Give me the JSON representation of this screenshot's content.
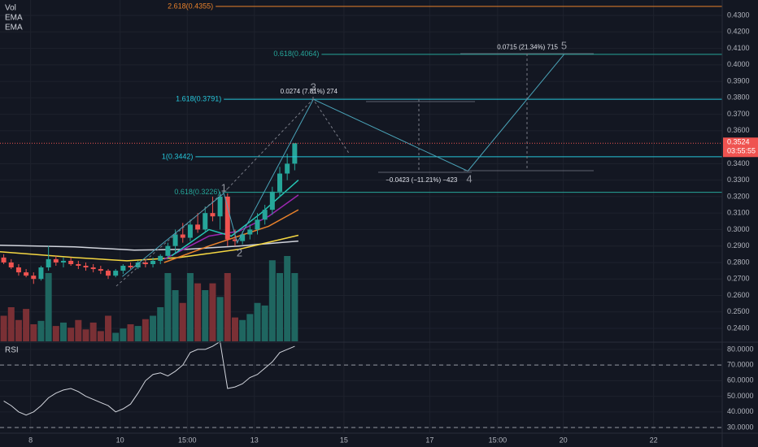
{
  "chart_data": {
    "type": "candlestick",
    "legend": [
      "Vol",
      "EMA",
      "EMA"
    ],
    "pane2_title": "RSI",
    "xlim": [
      0,
      96.8
    ],
    "xticks": [
      {
        "value": 4.1,
        "label": "8"
      },
      {
        "value": 16.1,
        "label": "10"
      },
      {
        "value": 25.1,
        "label": "15:00"
      },
      {
        "value": 34.1,
        "label": "13"
      },
      {
        "value": 46.1,
        "label": "15"
      },
      {
        "value": 57.6,
        "label": "17"
      },
      {
        "value": 66.7,
        "label": "15:00"
      },
      {
        "value": 75.5,
        "label": "20"
      },
      {
        "value": 87.6,
        "label": "22"
      }
    ],
    "ylim": [
      0.2321,
      0.4394
    ],
    "yticks": [
      {
        "value": 0.24,
        "label": "0.2400"
      },
      {
        "value": 0.25,
        "label": "0.2500"
      },
      {
        "value": 0.26,
        "label": "0.2600"
      },
      {
        "value": 0.27,
        "label": "0.2700"
      },
      {
        "value": 0.28,
        "label": "0.2800"
      },
      {
        "value": 0.29,
        "label": "0.2900"
      },
      {
        "value": 0.3,
        "label": "0.3000"
      },
      {
        "value": 0.31,
        "label": "0.3100"
      },
      {
        "value": 0.32,
        "label": "0.3200"
      },
      {
        "value": 0.33,
        "label": "0.3300"
      },
      {
        "value": 0.34,
        "label": "0.3400"
      },
      {
        "value": 0.36,
        "label": "0.3600"
      },
      {
        "value": 0.37,
        "label": "0.3700"
      },
      {
        "value": 0.38,
        "label": "0.3800"
      },
      {
        "value": 0.39,
        "label": "0.3900"
      },
      {
        "value": 0.4,
        "label": "0.4000"
      },
      {
        "value": 0.41,
        "label": "0.4100"
      },
      {
        "value": 0.42,
        "label": "0.4200"
      },
      {
        "value": 0.43,
        "label": "0.4300"
      }
    ],
    "x": [
      0.5,
      1.5,
      2.5,
      3.5,
      4.5,
      5.5,
      6.5,
      7.5,
      8.5,
      9.5,
      10.5,
      11.5,
      12.5,
      13.5,
      14.5,
      15.5,
      16.5,
      17.5,
      18.5,
      19.5,
      20.5,
      21.5,
      22.5,
      23.5,
      24.5,
      25.5,
      26.5,
      27.5,
      28.5,
      29.5,
      30.5,
      31.5,
      32.5,
      33.5,
      34.5,
      35.5,
      36.5,
      37.5,
      38.5,
      39.5
    ],
    "open": [
      0.283,
      0.28,
      0.277,
      0.274,
      0.272,
      0.27,
      0.277,
      0.282,
      0.28,
      0.281,
      0.279,
      0.278,
      0.277,
      0.276,
      0.275,
      0.272,
      0.275,
      0.278,
      0.277,
      0.28,
      0.279,
      0.281,
      0.284,
      0.29,
      0.297,
      0.295,
      0.303,
      0.3,
      0.31,
      0.308,
      0.32,
      0.294,
      0.293,
      0.297,
      0.3,
      0.306,
      0.312,
      0.323,
      0.334,
      0.34
    ],
    "high": [
      0.285,
      0.282,
      0.279,
      0.276,
      0.274,
      0.278,
      0.29,
      0.284,
      0.283,
      0.283,
      0.281,
      0.28,
      0.279,
      0.278,
      0.276,
      0.276,
      0.279,
      0.28,
      0.281,
      0.282,
      0.283,
      0.285,
      0.292,
      0.3,
      0.304,
      0.306,
      0.31,
      0.314,
      0.32,
      0.323,
      0.322,
      0.3,
      0.299,
      0.303,
      0.31,
      0.315,
      0.326,
      0.338,
      0.346,
      0.3524
    ],
    "low": [
      0.279,
      0.276,
      0.272,
      0.271,
      0.267,
      0.269,
      0.275,
      0.278,
      0.277,
      0.278,
      0.276,
      0.275,
      0.274,
      0.273,
      0.27,
      0.271,
      0.273,
      0.276,
      0.276,
      0.277,
      0.277,
      0.279,
      0.282,
      0.286,
      0.292,
      0.293,
      0.298,
      0.299,
      0.305,
      0.3,
      0.29,
      0.29,
      0.291,
      0.294,
      0.297,
      0.303,
      0.309,
      0.32,
      0.33,
      0.336
    ],
    "close": [
      0.28,
      0.277,
      0.274,
      0.272,
      0.27,
      0.277,
      0.282,
      0.28,
      0.281,
      0.279,
      0.278,
      0.277,
      0.276,
      0.275,
      0.272,
      0.275,
      0.278,
      0.277,
      0.28,
      0.279,
      0.281,
      0.284,
      0.29,
      0.297,
      0.295,
      0.303,
      0.3,
      0.31,
      0.308,
      0.32,
      0.294,
      0.293,
      0.297,
      0.3,
      0.306,
      0.312,
      0.323,
      0.334,
      0.34,
      0.3524
    ],
    "up_color": "#26a69a",
    "down_color": "#ef5350",
    "volume": [
      30,
      40,
      25,
      38,
      20,
      24,
      80,
      18,
      22,
      16,
      25,
      14,
      22,
      12,
      30,
      10,
      15,
      20,
      18,
      26,
      30,
      40,
      80,
      60,
      45,
      80,
      68,
      60,
      68,
      52,
      80,
      28,
      25,
      32,
      45,
      42,
      95,
      80,
      100,
      80
    ],
    "volume_ylim": [
      0,
      400
    ],
    "volume_up_color": "#1f6660",
    "volume_down_color": "#7a3035",
    "ema_lines": [
      {
        "color": "#d1d4dc",
        "x": [
          0,
          10,
          18,
          25,
          32,
          40
        ],
        "values": [
          0.2905,
          0.2895,
          0.2875,
          0.288,
          0.29,
          0.293
        ]
      },
      {
        "color": "#f5d742",
        "x": [
          0,
          10,
          17,
          24,
          32,
          40
        ],
        "values": [
          0.2865,
          0.283,
          0.281,
          0.283,
          0.288,
          0.2965
        ]
      },
      {
        "color": "#e8812b",
        "x": [
          22,
          28,
          32,
          36,
          40
        ],
        "values": [
          0.28,
          0.29,
          0.296,
          0.302,
          0.312
        ]
      },
      {
        "color": "#9c27b0",
        "x": [
          22,
          28,
          32,
          36,
          40
        ],
        "values": [
          0.282,
          0.296,
          0.299,
          0.308,
          0.321
        ]
      },
      {
        "color": "#26c6b5",
        "x": [
          23,
          28,
          31,
          35,
          40
        ],
        "values": [
          0.284,
          0.3,
          0.296,
          0.31,
          0.33
        ]
      }
    ],
    "current_price": 0.3524,
    "current_price_color": "#ef5350",
    "countdown": "03:55:55",
    "fib_levels": [
      {
        "label": "2.618(0.4355)",
        "value": 0.4355,
        "x_start": 28.9,
        "color": "#e8812b"
      },
      {
        "label": "0.618(0.4064)",
        "value": 0.4064,
        "x_start": 43.1,
        "color": "#26a69a"
      },
      {
        "label": "1.618(0.3791)",
        "value": 0.3791,
        "x_start": 30.0,
        "color": "#26c6da"
      },
      {
        "label": "1(0.3442)",
        "value": 0.3442,
        "x_start": 26.2,
        "color": "#26c6da"
      },
      {
        "label": "0.618(0.3226)",
        "value": 0.3226,
        "x_start": 29.8,
        "color": "#26a69a"
      }
    ],
    "wave_path": {
      "color": "#4aa3b8",
      "x": [
        16.4,
        30.0,
        31.8,
        42.0,
        62.7,
        75.6
      ],
      "values": [
        0.2715,
        0.322,
        0.292,
        0.3791,
        0.3355,
        0.4064
      ]
    },
    "wave_labels": [
      {
        "label": "1",
        "x": 30.0,
        "y": 0.3249
      },
      {
        "label": "2",
        "x": 32.1,
        "y": 0.2854
      },
      {
        "label": "3",
        "x": 42.0,
        "y": 0.3861
      },
      {
        "label": "4",
        "x": 62.9,
        "y": 0.3303
      },
      {
        "label": "5",
        "x": 75.6,
        "y": 0.4113
      }
    ],
    "annotations": [
      {
        "text": "0.0274 (7.81%) 274",
        "x": 41.4,
        "y": 0.3836
      },
      {
        "text": "−0.0423 (−11.21%) −423",
        "x": 56.5,
        "y": 0.33
      },
      {
        "text": "0.0715 (21.34%) 715",
        "x": 70.7,
        "y": 0.4107
      }
    ],
    "rsi": [
      47,
      44,
      40,
      38,
      40,
      44,
      49,
      52,
      54,
      55,
      53,
      50,
      48,
      46,
      44,
      40,
      42,
      45,
      52,
      60,
      64,
      65,
      63,
      66,
      70,
      78,
      80,
      80,
      82,
      85,
      55,
      56,
      58,
      62,
      64,
      68,
      72,
      78,
      80,
      82
    ],
    "rsi_color": "#d1d4dc",
    "rsi_ylim": [
      26.9,
      83.6
    ],
    "rsi_bands": [
      30,
      70
    ],
    "rsi_ticks": [
      {
        "value": 30,
        "label": "30.0000"
      },
      {
        "value": 40,
        "label": "40.0000"
      },
      {
        "value": 50,
        "label": "50.0000"
      },
      {
        "value": 60,
        "label": "60.0000"
      },
      {
        "value": 70,
        "label": "70.0000"
      },
      {
        "value": 80,
        "label": "80.0000"
      }
    ]
  }
}
